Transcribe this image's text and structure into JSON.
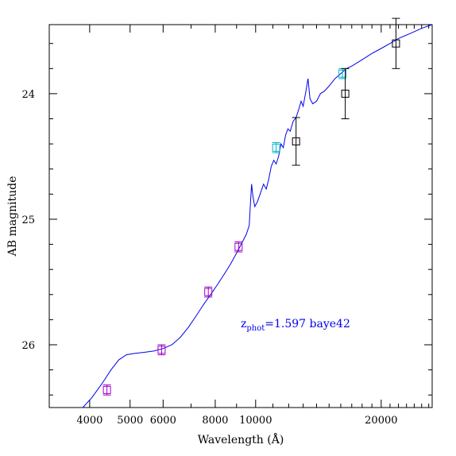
{
  "chart_data": {
    "type": "line",
    "xlabel": "Wavelength (Å)",
    "ylabel": "AB magnitude",
    "x_scale": "log",
    "xlim": [
      3200,
      26500
    ],
    "ylim": [
      26.5,
      23.45
    ],
    "y_inverted": true,
    "x_ticks": [
      4000,
      5000,
      6000,
      8000,
      10000,
      20000
    ],
    "x_tick_labels": [
      "4000",
      "5000",
      "6000",
      "8000",
      "10000",
      "20000"
    ],
    "y_ticks": [
      24,
      25,
      26
    ],
    "y_tick_labels": [
      "24",
      "25",
      "26"
    ],
    "annotation": {
      "prefix": "z",
      "subscript": "phot",
      "text": "=1.597 baye42",
      "color": "#0000ee"
    },
    "colors": {
      "sed": "#0000ee",
      "magenta": "#a000c8",
      "cyan": "#00b4c8",
      "black": "#000000",
      "frame": "#000000"
    },
    "series": [
      {
        "type": "line",
        "color_key": "sed",
        "points": [
          [
            3850,
            26.52
          ],
          [
            4050,
            26.42
          ],
          [
            4300,
            26.3
          ],
          [
            4500,
            26.2
          ],
          [
            4700,
            26.12
          ],
          [
            4900,
            26.08
          ],
          [
            5100,
            26.07
          ],
          [
            5400,
            26.06
          ],
          [
            5700,
            26.05
          ],
          [
            6000,
            26.03
          ],
          [
            6300,
            26.0
          ],
          [
            6600,
            25.94
          ],
          [
            6900,
            25.86
          ],
          [
            7200,
            25.77
          ],
          [
            7500,
            25.68
          ],
          [
            7800,
            25.6
          ],
          [
            8100,
            25.52
          ],
          [
            8400,
            25.44
          ],
          [
            8700,
            25.36
          ],
          [
            9000,
            25.27
          ],
          [
            9300,
            25.18
          ],
          [
            9500,
            25.12
          ],
          [
            9650,
            25.05
          ],
          [
            9720,
            24.87
          ],
          [
            9780,
            24.72
          ],
          [
            9850,
            24.82
          ],
          [
            9950,
            24.9
          ],
          [
            10100,
            24.86
          ],
          [
            10300,
            24.78
          ],
          [
            10450,
            24.72
          ],
          [
            10600,
            24.76
          ],
          [
            10750,
            24.68
          ],
          [
            10900,
            24.58
          ],
          [
            11050,
            24.53
          ],
          [
            11200,
            24.56
          ],
          [
            11350,
            24.5
          ],
          [
            11500,
            24.4
          ],
          [
            11650,
            24.43
          ],
          [
            11800,
            24.33
          ],
          [
            11950,
            24.28
          ],
          [
            12100,
            24.3
          ],
          [
            12300,
            24.22
          ],
          [
            12500,
            24.19
          ],
          [
            12700,
            24.12
          ],
          [
            12850,
            24.06
          ],
          [
            13000,
            24.1
          ],
          [
            13200,
            23.98
          ],
          [
            13350,
            23.88
          ],
          [
            13500,
            24.04
          ],
          [
            13700,
            24.08
          ],
          [
            14000,
            24.06
          ],
          [
            14300,
            24.0
          ],
          [
            14600,
            23.98
          ],
          [
            15000,
            23.94
          ],
          [
            15500,
            23.88
          ],
          [
            16000,
            23.84
          ],
          [
            16500,
            23.8
          ],
          [
            17000,
            23.78
          ],
          [
            18000,
            23.73
          ],
          [
            19000,
            23.68
          ],
          [
            20000,
            23.64
          ],
          [
            21000,
            23.6
          ],
          [
            22000,
            23.56
          ],
          [
            23500,
            23.52
          ],
          [
            25000,
            23.48
          ],
          [
            26500,
            23.44
          ]
        ]
      },
      {
        "type": "errorbar",
        "color_key": "magenta",
        "points": [
          {
            "x": 4400,
            "y": 26.36,
            "err": 0.04
          },
          {
            "x": 5950,
            "y": 26.04,
            "err": 0.04
          },
          {
            "x": 7700,
            "y": 25.58,
            "err": 0.04
          },
          {
            "x": 9100,
            "y": 25.22,
            "err": 0.04
          }
        ]
      },
      {
        "type": "errorbar",
        "color_key": "cyan",
        "points": [
          {
            "x": 11200,
            "y": 24.43,
            "err": 0.04
          },
          {
            "x": 16150,
            "y": 23.84,
            "err": 0.04
          }
        ]
      },
      {
        "type": "errorbar",
        "color_key": "black",
        "points": [
          {
            "x": 12500,
            "y": 24.38,
            "err": 0.19
          },
          {
            "x": 16400,
            "y": 24.0,
            "err": 0.2
          },
          {
            "x": 21700,
            "y": 23.6,
            "err": 0.2
          }
        ]
      }
    ]
  }
}
